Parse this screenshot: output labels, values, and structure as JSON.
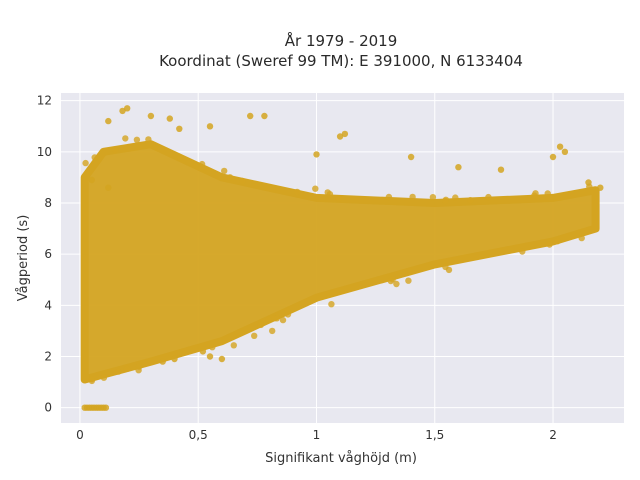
{
  "chart_data": {
    "type": "scatter",
    "title_lines": [
      "År 1979 - 2019",
      "Koordinat (Sweref 99 TM): E 391000, N 6133404"
    ],
    "xlabel": "Signifikant våghöjd (m)",
    "ylabel": "Vågperiod (s)",
    "xlim": [
      -0.08,
      2.3
    ],
    "ylim": [
      -0.6,
      12.3
    ],
    "x_ticks": [
      0,
      0.5,
      1,
      1.5,
      2
    ],
    "x_tick_labels": [
      "0",
      "0,5",
      "1",
      "1,5",
      "2"
    ],
    "y_ticks": [
      0,
      2,
      4,
      6,
      8,
      10,
      12
    ],
    "y_tick_labels": [
      "0",
      "2",
      "4",
      "6",
      "8",
      "10",
      "12"
    ],
    "grid": true,
    "legend": "none",
    "colors": {
      "marker": "#d4a421",
      "plot_bg": "#e8e8f0",
      "grid": "#ffffff"
    },
    "series": [
      {
        "density_envelope": {
          "x_min": 0.02,
          "x_max": 2.18,
          "dense_region": [
            [
              0.02,
              1.1
            ],
            [
              0.1,
              1.3
            ],
            [
              0.3,
              1.8
            ],
            [
              0.6,
              2.6
            ],
            [
              1.0,
              4.3
            ],
            [
              1.5,
              5.6
            ],
            [
              2.0,
              6.5
            ],
            [
              2.18,
              7.0
            ],
            [
              2.18,
              8.5
            ],
            [
              2.0,
              8.2
            ],
            [
              1.5,
              8.0
            ],
            [
              1.0,
              8.2
            ],
            [
              0.6,
              9.0
            ],
            [
              0.3,
              10.3
            ],
            [
              0.1,
              10.0
            ],
            [
              0.02,
              9.0
            ]
          ],
          "zero_period_points": {
            "x_range": [
              0.02,
              0.11
            ],
            "y": 0
          }
        },
        "outliers": [
          [
            0.12,
            11.2
          ],
          [
            0.18,
            11.6
          ],
          [
            0.2,
            11.7
          ],
          [
            0.3,
            11.4
          ],
          [
            0.38,
            11.3
          ],
          [
            0.42,
            10.9
          ],
          [
            0.55,
            11.0
          ],
          [
            0.72,
            11.4
          ],
          [
            0.78,
            11.4
          ],
          [
            1.1,
            10.6
          ],
          [
            1.12,
            10.7
          ],
          [
            1.0,
            9.9
          ],
          [
            1.4,
            9.8
          ],
          [
            1.6,
            9.4
          ],
          [
            1.78,
            9.3
          ],
          [
            2.0,
            9.8
          ],
          [
            2.03,
            10.2
          ],
          [
            2.05,
            10.0
          ],
          [
            2.15,
            8.8
          ],
          [
            2.2,
            8.6
          ],
          [
            0.12,
            8.6
          ],
          [
            0.05,
            8.9
          ],
          [
            0.55,
            2.0
          ],
          [
            0.52,
            2.2
          ],
          [
            0.4,
            1.9
          ],
          [
            0.35,
            1.8
          ],
          [
            0.6,
            1.9
          ],
          [
            0.25,
            1.6
          ]
        ]
      }
    ]
  }
}
